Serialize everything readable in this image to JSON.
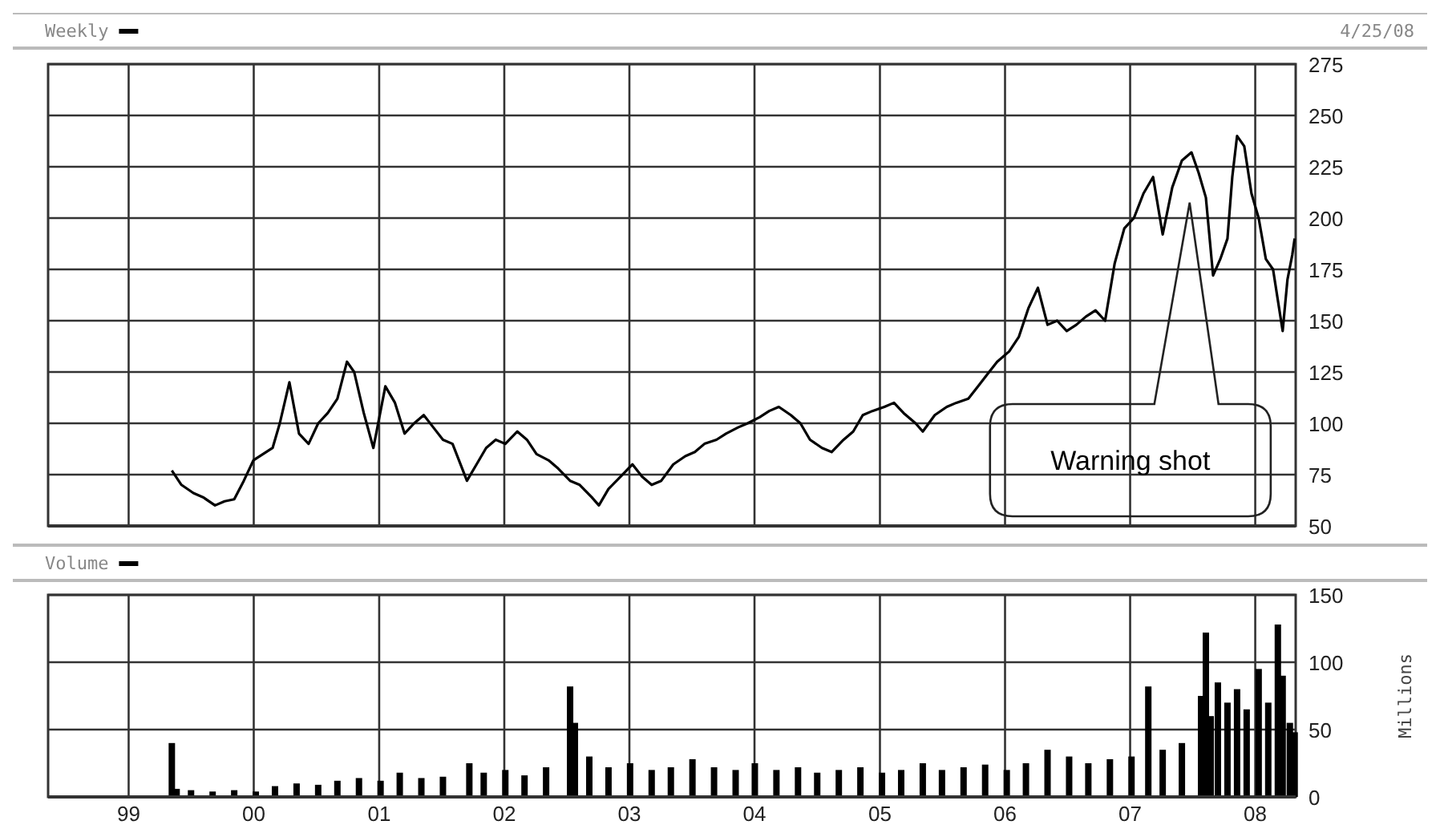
{
  "chart_data": [
    {
      "type": "line",
      "title": "Weekly",
      "annotations": [
        "4/25/08",
        "Warning shot"
      ],
      "xlim": [
        "1998-05-11",
        "2008-04-28"
      ],
      "xticks": [
        {
          "value": "1999-01-01",
          "label": null
        },
        {
          "value": "2000-01-01",
          "label": null
        },
        {
          "value": "2001-01-01",
          "label": null
        },
        {
          "value": "2002-01-01",
          "label": null
        },
        {
          "value": "2003-01-01",
          "label": null
        },
        {
          "value": "2004-01-01",
          "label": null
        },
        {
          "value": "2005-01-01",
          "label": null
        },
        {
          "value": "2006-01-01",
          "label": null
        },
        {
          "value": "2007-01-01",
          "label": null
        },
        {
          "value": "2008-01-01",
          "label": null
        }
      ],
      "ylim": [
        50,
        275
      ],
      "yticks": [
        50,
        75,
        100,
        125,
        150,
        175,
        200,
        225,
        250,
        275
      ],
      "grid": true,
      "tick_labels": "y",
      "x": [
        "1999-05-07",
        "1999-06-04",
        "1999-07-09",
        "1999-08-06",
        "1999-09-10",
        "1999-10-08",
        "1999-11-05",
        "1999-12-03",
        "1999-12-31",
        "2000-01-28",
        "2000-02-25",
        "2000-03-17",
        "2000-04-14",
        "2000-05-12",
        "2000-06-09",
        "2000-07-07",
        "2000-08-04",
        "2000-09-01",
        "2000-09-29",
        "2000-10-20",
        "2000-11-17",
        "2000-12-15",
        "2001-01-19",
        "2001-02-16",
        "2001-03-16",
        "2001-04-13",
        "2001-05-11",
        "2001-06-08",
        "2001-07-06",
        "2001-08-03",
        "2001-09-14",
        "2001-10-12",
        "2001-11-09",
        "2001-12-07",
        "2002-01-04",
        "2002-02-08",
        "2002-03-08",
        "2002-04-05",
        "2002-05-10",
        "2002-06-07",
        "2002-07-12",
        "2002-08-09",
        "2002-09-13",
        "2002-10-04",
        "2002-11-01",
        "2002-12-06",
        "2003-01-10",
        "2003-02-07",
        "2003-03-07",
        "2003-04-04",
        "2003-05-09",
        "2003-06-13",
        "2003-07-11",
        "2003-08-08",
        "2003-09-12",
        "2003-10-10",
        "2003-11-14",
        "2003-12-12",
        "2004-01-16",
        "2004-02-13",
        "2004-03-12",
        "2004-04-16",
        "2004-05-14",
        "2004-06-11",
        "2004-07-16",
        "2004-08-13",
        "2004-09-17",
        "2004-10-15",
        "2004-11-12",
        "2004-12-10",
        "2005-01-14",
        "2005-02-11",
        "2005-03-11",
        "2005-04-15",
        "2005-05-06",
        "2005-06-10",
        "2005-07-15",
        "2005-08-12",
        "2005-09-16",
        "2005-10-14",
        "2005-11-11",
        "2005-12-09",
        "2006-01-13",
        "2006-02-10",
        "2006-03-10",
        "2006-04-07",
        "2006-05-05",
        "2006-06-02",
        "2006-06-30",
        "2006-07-28",
        "2006-08-25",
        "2006-09-22",
        "2006-10-20",
        "2006-11-17",
        "2006-12-15",
        "2007-01-12",
        "2007-02-09",
        "2007-03-09",
        "2007-04-06",
        "2007-05-04",
        "2007-06-01",
        "2007-06-29",
        "2007-07-20",
        "2007-08-10",
        "2007-08-31",
        "2007-09-21",
        "2007-10-12",
        "2007-10-26",
        "2007-11-09",
        "2007-11-30",
        "2007-12-21",
        "2008-01-11",
        "2008-02-01",
        "2008-02-22",
        "2008-03-07",
        "2008-03-21",
        "2008-04-04",
        "2008-04-18",
        "2008-04-25"
      ],
      "series": [
        {
          "color": "#000000",
          "values": [
            77,
            70,
            66,
            64,
            60,
            62,
            63,
            72,
            82,
            85,
            88,
            100,
            120,
            95,
            90,
            100,
            105,
            112,
            130,
            125,
            105,
            88,
            118,
            110,
            95,
            100,
            104,
            98,
            92,
            90,
            72,
            80,
            88,
            92,
            90,
            96,
            92,
            85,
            82,
            78,
            72,
            70,
            64,
            60,
            68,
            74,
            80,
            74,
            70,
            72,
            80,
            84,
            86,
            90,
            92,
            95,
            98,
            100,
            103,
            106,
            108,
            104,
            100,
            92,
            88,
            86,
            92,
            96,
            104,
            106,
            108,
            110,
            105,
            100,
            96,
            104,
            108,
            110,
            112,
            118,
            124,
            130,
            135,
            142,
            156,
            166,
            148,
            150,
            145,
            148,
            152,
            155,
            150,
            178,
            195,
            200,
            212,
            220,
            192,
            215,
            228,
            232,
            222,
            210,
            172,
            180,
            190,
            220,
            240,
            235,
            212,
            200,
            180,
            175,
            160,
            145,
            170,
            182,
            190
          ]
        }
      ]
    },
    {
      "type": "bar",
      "title": "Volume",
      "ylabel": "Millions",
      "xlim": [
        "1998-05-11",
        "2008-04-28"
      ],
      "xticks": [
        {
          "value": "1999-01-01",
          "label": "99"
        },
        {
          "value": "2000-01-01",
          "label": "00"
        },
        {
          "value": "2001-01-01",
          "label": "01"
        },
        {
          "value": "2002-01-01",
          "label": "02"
        },
        {
          "value": "2003-01-01",
          "label": "03"
        },
        {
          "value": "2004-01-01",
          "label": "04"
        },
        {
          "value": "2005-01-01",
          "label": "05"
        },
        {
          "value": "2006-01-01",
          "label": "06"
        },
        {
          "value": "2007-01-01",
          "label": "07"
        },
        {
          "value": "2008-01-01",
          "label": "08"
        }
      ],
      "ylim": [
        0,
        150
      ],
      "yticks": [
        0,
        50,
        100,
        150
      ],
      "grid": true,
      "x": [
        "1999-05-07",
        "1999-05-21",
        "1999-07-02",
        "1999-09-03",
        "1999-11-05",
        "2000-01-07",
        "2000-03-03",
        "2000-05-05",
        "2000-07-07",
        "2000-09-01",
        "2000-11-03",
        "2001-01-05",
        "2001-03-02",
        "2001-05-04",
        "2001-07-06",
        "2001-09-21",
        "2001-11-02",
        "2002-01-04",
        "2002-03-01",
        "2002-05-03",
        "2002-07-12",
        "2002-07-26",
        "2002-09-06",
        "2002-11-01",
        "2003-01-03",
        "2003-03-07",
        "2003-05-02",
        "2003-07-04",
        "2003-09-05",
        "2003-11-07",
        "2004-01-02",
        "2004-03-05",
        "2004-05-07",
        "2004-07-02",
        "2004-09-03",
        "2004-11-05",
        "2005-01-07",
        "2005-03-04",
        "2005-05-06",
        "2005-07-01",
        "2005-09-02",
        "2005-11-04",
        "2006-01-06",
        "2006-03-03",
        "2006-05-05",
        "2006-07-07",
        "2006-09-01",
        "2006-11-03",
        "2007-01-05",
        "2007-02-23",
        "2007-04-06",
        "2007-06-01",
        "2007-07-27",
        "2007-08-10",
        "2007-08-24",
        "2007-09-14",
        "2007-10-12",
        "2007-11-09",
        "2007-12-07",
        "2008-01-11",
        "2008-02-08",
        "2008-03-07",
        "2008-03-21",
        "2008-04-11",
        "2008-04-25"
      ],
      "series": [
        {
          "color": "#000000",
          "values": [
            40,
            6,
            5,
            4,
            5,
            4,
            8,
            10,
            9,
            12,
            14,
            12,
            18,
            14,
            15,
            25,
            18,
            20,
            16,
            22,
            82,
            55,
            30,
            22,
            25,
            20,
            22,
            28,
            22,
            20,
            25,
            20,
            22,
            18,
            20,
            22,
            18,
            20,
            25,
            20,
            22,
            24,
            20,
            25,
            35,
            30,
            25,
            28,
            30,
            82,
            35,
            40,
            75,
            122,
            60,
            85,
            70,
            80,
            65,
            95,
            70,
            128,
            90,
            55,
            48
          ]
        }
      ]
    }
  ]
}
